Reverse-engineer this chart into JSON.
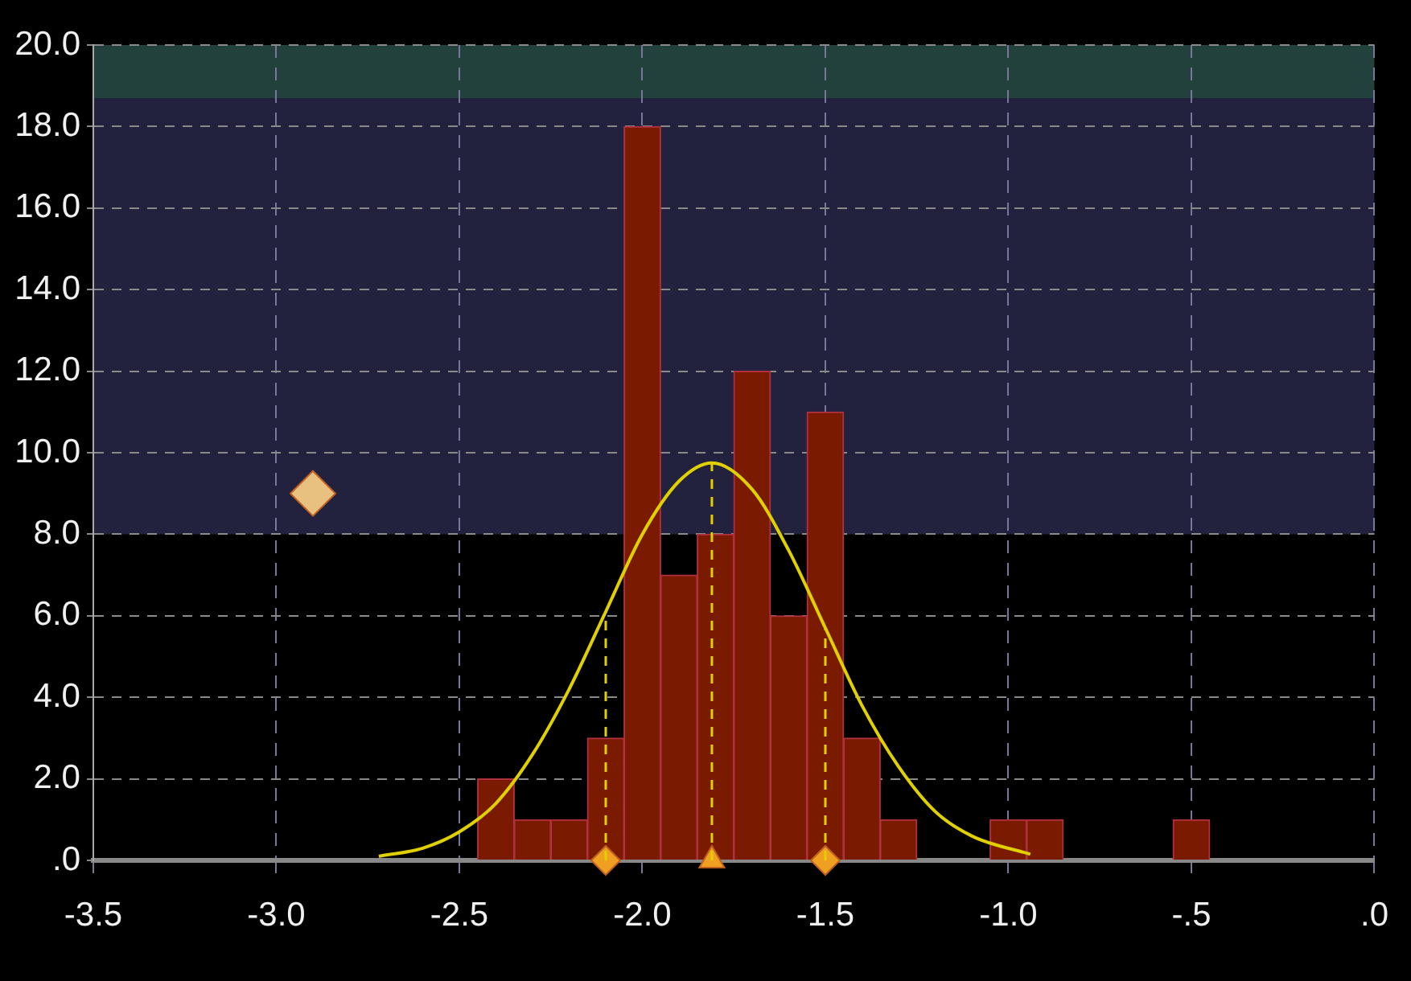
{
  "chart_data": {
    "type": "histogram",
    "bins": [
      -2.45,
      -2.35,
      -2.25,
      -2.15,
      -2.05,
      -1.95,
      -1.85,
      -1.75,
      -1.65,
      -1.55,
      -1.45,
      -1.35,
      -1.25,
      -1.15,
      -1.05,
      -0.95,
      -0.85,
      -0.75,
      -0.65,
      -0.55,
      -0.45
    ],
    "values": [
      2,
      1,
      1,
      3,
      18,
      7,
      8,
      12,
      6,
      11,
      3,
      1,
      0,
      0,
      1,
      1,
      0,
      0,
      0,
      1
    ],
    "color": "#7a1a00",
    "xlim": [
      -3.5,
      0
    ],
    "xticks": [
      -3.5,
      {
        "value": -3,
        "label": "-3.0"
      },
      -2.5,
      {
        "value": -2,
        "label": "-2.0"
      },
      -1.5,
      {
        "value": -1,
        "label": "-1.0"
      },
      {
        "value": -0.5,
        "label": "-.5"
      },
      {
        "value": 0,
        "label": ".0"
      }
    ],
    "ylim": [
      0,
      20
    ],
    "yticks": [
      {
        "value": 0,
        "label": ".0"
      },
      {
        "value": 2,
        "label": "2.0"
      },
      {
        "value": 4,
        "label": "4.0"
      },
      {
        "value": 6,
        "label": "6.0"
      },
      {
        "value": 8,
        "label": "8.0"
      },
      {
        "value": 10,
        "label": "10.0"
      },
      {
        "value": 12,
        "label": "12.0"
      },
      {
        "value": 14,
        "label": "14.0"
      },
      {
        "value": 16,
        "label": "16.0"
      },
      {
        "value": 18,
        "label": "18.0"
      },
      {
        "value": 20,
        "label": "20.0"
      }
    ],
    "grid": true,
    "bands": [
      {
        "axis": "y",
        "from": 8,
        "to": 18.7,
        "color": "#22223f"
      },
      {
        "axis": "y",
        "from": 18.7,
        "to": 20,
        "color": "#22403c"
      }
    ],
    "ref_lines": [
      {
        "axis": "x",
        "value": -2.1,
        "color": "#e0d000",
        "line_style": "dashed"
      },
      {
        "axis": "x",
        "value": -1.81,
        "color": "#e0d000",
        "line_style": "dashed"
      },
      {
        "axis": "x",
        "value": -1.5,
        "color": "#e0d000",
        "line_style": "dashed"
      }
    ],
    "series": [
      {
        "type": "line",
        "color": "#e0d000",
        "marker": "none",
        "x": [
          -2.72,
          -2.6,
          -2.5,
          -2.4,
          -2.3,
          -2.2,
          -2.1,
          -2.0,
          -1.9,
          -1.81,
          -1.7,
          -1.6,
          -1.5,
          -1.4,
          -1.3,
          -1.2,
          -1.1,
          -0.94
        ],
        "values": [
          0.1,
          0.3,
          0.7,
          1.4,
          2.6,
          4.2,
          6.1,
          8.0,
          9.3,
          9.75,
          9.1,
          7.6,
          5.7,
          3.8,
          2.3,
          1.2,
          0.6,
          0.15
        ]
      },
      {
        "type": "scatter",
        "color": "#e8c080",
        "marker": "diamond",
        "x": [
          -2.9
        ],
        "values": [
          9
        ]
      },
      {
        "type": "scatter",
        "color": "#f0a020",
        "marker": "diamond",
        "x": [
          -2.1,
          -1.5
        ],
        "values": [
          0,
          0
        ]
      },
      {
        "type": "scatter",
        "color": "#f0a020",
        "marker": "triangle",
        "x": [
          -1.81
        ],
        "values": [
          0
        ]
      }
    ]
  }
}
